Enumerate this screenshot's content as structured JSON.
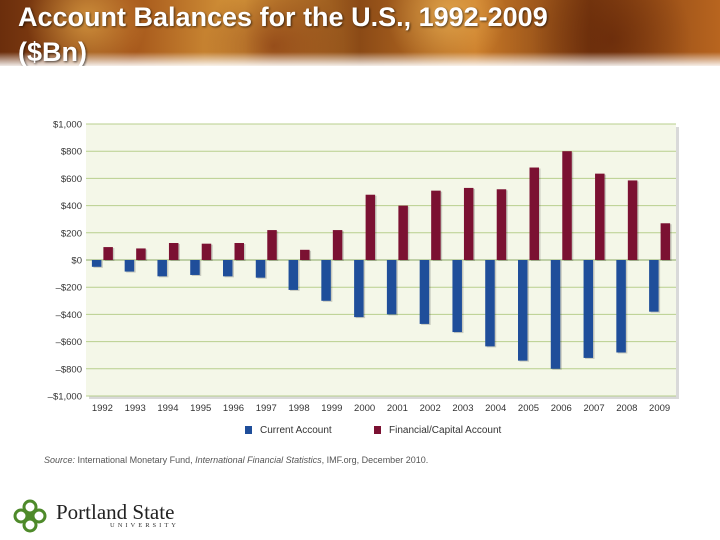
{
  "slide": {
    "title_line1": "Account Balances for the U.S., 1992-2009",
    "title_line2": "($Bn)"
  },
  "source": {
    "prefix": "Source:",
    "org": " International Monetary Fund, ",
    "publication": "International Financial Statistics",
    "suffix": ", IMF.org, December 2010."
  },
  "logo": {
    "name": "Portland State",
    "subtitle": "UNIVERSITY"
  },
  "colors": {
    "current_account": "#1f4e9a",
    "financial_capital": "#7b1132",
    "plot_bg": "#f4f7e8",
    "grid": "#b8cf8e"
  },
  "chart_data": {
    "type": "bar",
    "title": "",
    "xlabel": "",
    "ylabel": "",
    "ylim": [
      -1000,
      1000
    ],
    "grid": true,
    "legend_position": "bottom",
    "y_ticks": [
      {
        "value": 1000,
        "label": "$1,000"
      },
      {
        "value": 800,
        "label": "$800"
      },
      {
        "value": 600,
        "label": "$600"
      },
      {
        "value": 400,
        "label": "$400"
      },
      {
        "value": 200,
        "label": "$200"
      },
      {
        "value": 0,
        "label": "$0"
      },
      {
        "value": -200,
        "label": "–$200"
      },
      {
        "value": -400,
        "label": "–$400"
      },
      {
        "value": -600,
        "label": "–$600"
      },
      {
        "value": -800,
        "label": "–$800"
      },
      {
        "value": -1000,
        "label": "–$1,000"
      }
    ],
    "categories": [
      "1992",
      "1993",
      "1994",
      "1995",
      "1996",
      "1997",
      "1998",
      "1999",
      "2000",
      "2001",
      "2002",
      "2003",
      "2004",
      "2005",
      "2006",
      "2007",
      "2008",
      "2009"
    ],
    "series": [
      {
        "name": "Current Account",
        "color": "#1f4e9a",
        "values": [
          -50,
          -85,
          -120,
          -110,
          -120,
          -130,
          -220,
          -300,
          -420,
          -400,
          -470,
          -530,
          -635,
          -740,
          -800,
          -720,
          -680,
          -380
        ]
      },
      {
        "name": "Financial/Capital Account",
        "color": "#7b1132",
        "values": [
          95,
          85,
          125,
          120,
          125,
          220,
          75,
          220,
          480,
          400,
          510,
          530,
          520,
          680,
          800,
          635,
          585,
          270
        ]
      }
    ]
  }
}
